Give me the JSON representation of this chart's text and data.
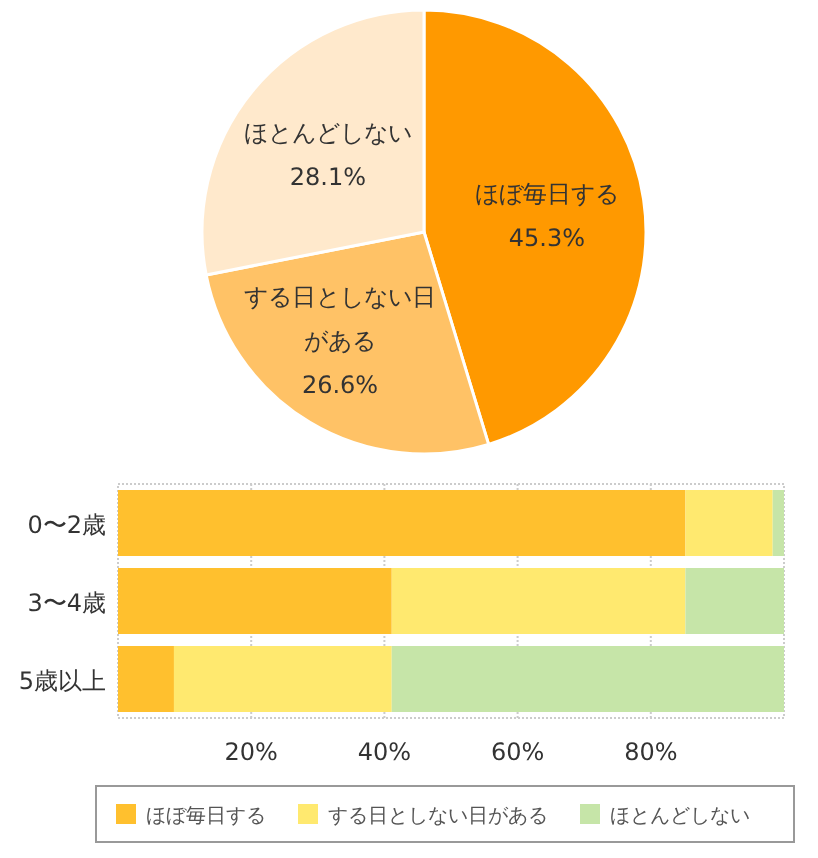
{
  "chart_data": [
    {
      "type": "pie",
      "categories": [
        "ほぼ毎日する",
        "する日としない日がある",
        "ほとんどしない"
      ],
      "values": [
        45.3,
        26.6,
        28.1
      ],
      "colors": [
        "#ff9900",
        "#ffc266",
        "#ffe9cc"
      ],
      "value_labels": [
        "45.3%",
        "26.6%",
        "28.1%"
      ],
      "legend": false
    },
    {
      "type": "bar",
      "orientation": "horizontal",
      "stacked": true,
      "categories": [
        "0〜2歳",
        "3〜4歳",
        "5歳以上"
      ],
      "series": [
        {
          "name": "ほぼ毎日する",
          "color": "#ffc02e",
          "values": [
            85.2,
            41.1,
            8.4
          ]
        },
        {
          "name": "する日としない日がある",
          "color": "#ffe96f",
          "values": [
            13.1,
            44.1,
            32.7
          ]
        },
        {
          "name": "ほとんどしない",
          "color": "#c6e5a8",
          "values": [
            1.7,
            14.8,
            58.9
          ]
        }
      ],
      "xlim": [
        0,
        100
      ],
      "xticks": [
        {
          "value": 20,
          "label": "20%"
        },
        {
          "value": 40,
          "label": "40%"
        },
        {
          "value": 60,
          "label": "60%"
        },
        {
          "value": 80,
          "label": "80%"
        }
      ],
      "grid": "x",
      "legend": "bottom"
    }
  ]
}
